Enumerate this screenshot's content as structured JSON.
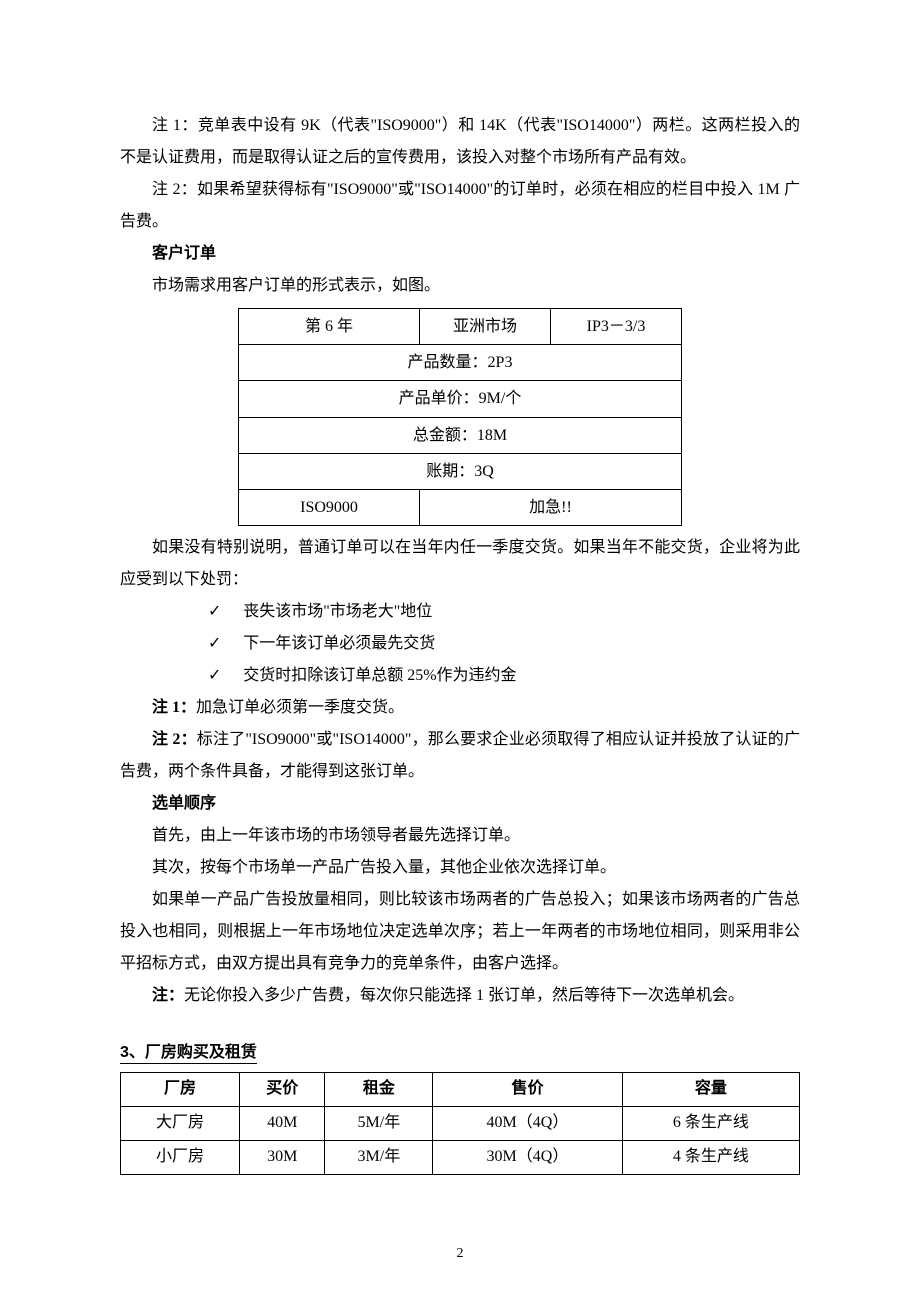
{
  "notes_top": {
    "note1": "注 1：竞单表中设有 9K（代表\"ISO9000\"）和 14K（代表\"ISO14000\"）两栏。这两栏投入的不是认证费用，而是取得认证之后的宣传费用，该投入对整个市场所有产品有效。",
    "note2": "注 2：如果希望获得标有\"ISO9000\"或\"ISO14000\"的订单时，必须在相应的栏目中投入 1M 广告费。"
  },
  "customer_order": {
    "heading": "客户订单",
    "intro": "市场需求用客户订单的形式表示，如图。",
    "table": {
      "head": {
        "year": "第 6 年",
        "market": "亚洲市场",
        "code": "IP3－3/3"
      },
      "rows": [
        "产品数量：2P3",
        "产品单价：9M/个",
        "总金额：18M",
        "账期：3Q"
      ],
      "foot": {
        "left": "ISO9000",
        "right": "加急!!"
      }
    },
    "after1": "如果没有特别说明，普通订单可以在当年内任一季度交货。如果当年不能交货，企业将为此应受到以下处罚：",
    "penalties": [
      "丧失该市场\"市场老大\"地位",
      "下一年该订单必须最先交货",
      "交货时扣除该订单总额 25%作为违约金"
    ],
    "note1_label": "注 1：",
    "note1_text": "加急订单必须第一季度交货。",
    "note2_label": "注 2：",
    "note2_text": "标注了\"ISO9000\"或\"ISO14000\"，那么要求企业必须取得了相应认证并投放了认证的广告费，两个条件具备，才能得到这张订单。"
  },
  "select_order": {
    "heading": "选单顺序",
    "p1": "首先，由上一年该市场的市场领导者最先选择订单。",
    "p2": "其次，按每个市场单一产品广告投入量，其他企业依次选择订单。",
    "p3": "如果单一产品广告投放量相同，则比较该市场两者的广告总投入；如果该市场两者的广告总投入也相同，则根据上一年市场地位决定选单次序；若上一年两者的市场地位相同，则采用非公平招标方式，由双方提出具有竞争力的竞单条件，由客户选择。",
    "note_label": "注：",
    "note_text": "无论你投入多少广告费，每次你只能选择 1 张订单，然后等待下一次选单机会。"
  },
  "section3": {
    "heading": "3、厂房购买及租赁",
    "columns": [
      "厂房",
      "买价",
      "租金",
      "售价",
      "容量"
    ],
    "rows": [
      [
        "大厂房",
        "40M",
        "5M/年",
        "40M（4Q）",
        "6 条生产线"
      ],
      [
        "小厂房",
        "30M",
        "3M/年",
        "30M（4Q）",
        "4 条生产线"
      ]
    ]
  },
  "page_number": "2"
}
